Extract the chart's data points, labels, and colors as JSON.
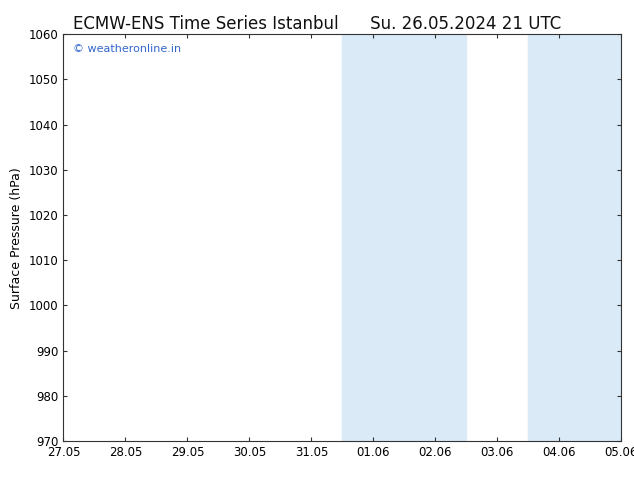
{
  "title_left": "ECMW-ENS Time Series Istanbul",
  "title_right": "Su. 26.05.2024 21 UTC",
  "ylabel": "Surface Pressure (hPa)",
  "ylim": [
    970,
    1060
  ],
  "yticks": [
    970,
    980,
    990,
    1000,
    1010,
    1020,
    1030,
    1040,
    1050,
    1060
  ],
  "xtick_labels": [
    "27.05",
    "28.05",
    "29.05",
    "30.05",
    "31.05",
    "01.06",
    "02.06",
    "03.06",
    "04.06",
    "05.06"
  ],
  "xtick_positions": [
    0,
    1,
    2,
    3,
    4,
    5,
    6,
    7,
    8,
    9
  ],
  "num_ticks": 10,
  "shaded_bands": [
    {
      "x_start": 4.5,
      "x_end": 6.5
    },
    {
      "x_start": 7.5,
      "x_end": 9.0
    }
  ],
  "shaded_color": "#daeaf7",
  "background_color": "#ffffff",
  "plot_bg_color": "#ffffff",
  "border_color": "#333333",
  "watermark_text": "© weatheronline.in",
  "watermark_color": "#3366cc",
  "title_fontsize": 12,
  "label_fontsize": 9,
  "tick_fontsize": 8.5
}
